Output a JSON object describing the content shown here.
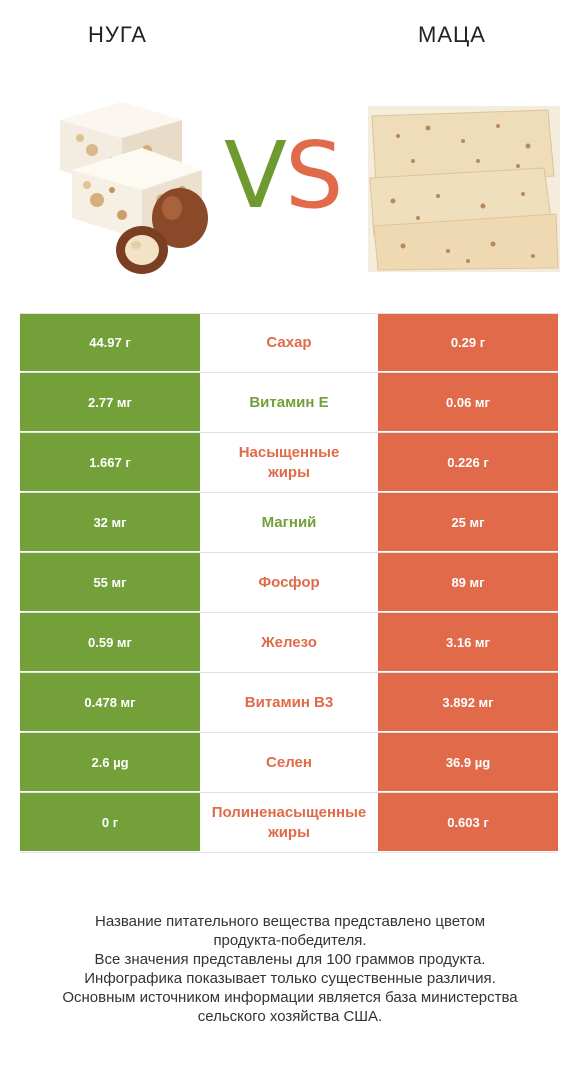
{
  "header": {
    "left_title": "НУГА",
    "right_title": "МАЦА",
    "vs_v": "V",
    "vs_s": "S"
  },
  "colors": {
    "winner_left": "#74a03a",
    "winner_right": "#e06a4a"
  },
  "images": {
    "left": "nougat-image",
    "right": "matzo-image"
  },
  "rows": [
    {
      "left": "44.97 г",
      "label": "Сахар",
      "right": "0.29 г",
      "winner": "right"
    },
    {
      "left": "2.77 мг",
      "label": "Витамин E",
      "right": "0.06 мг",
      "winner": "left"
    },
    {
      "left": "1.667 г",
      "label": "Насыщенные\nжиры",
      "right": "0.226 г",
      "winner": "right"
    },
    {
      "left": "32 мг",
      "label": "Магний",
      "right": "25 мг",
      "winner": "left"
    },
    {
      "left": "55 мг",
      "label": "Фосфор",
      "right": "89 мг",
      "winner": "right"
    },
    {
      "left": "0.59 мг",
      "label": "Железо",
      "right": "3.16 мг",
      "winner": "right"
    },
    {
      "left": "0.478 мг",
      "label": "Витамин B3",
      "right": "3.892 мг",
      "winner": "right"
    },
    {
      "left": "2.6 µg",
      "label": "Селен",
      "right": "36.9 µg",
      "winner": "right"
    },
    {
      "left": "0 г",
      "label": "Полиненасыщенные\nжиры",
      "right": "0.603 г",
      "winner": "right"
    }
  ],
  "footer": {
    "line1": "Название питательного вещества представлено цветом",
    "line2": "продукта-победителя.",
    "line3": "Все значения представлены для 100 граммов продукта.",
    "line4": "Инфографика показывает только существенные различия.",
    "line5": "Основным источником информации является база министерства",
    "line6": "сельского хозяйства США."
  }
}
